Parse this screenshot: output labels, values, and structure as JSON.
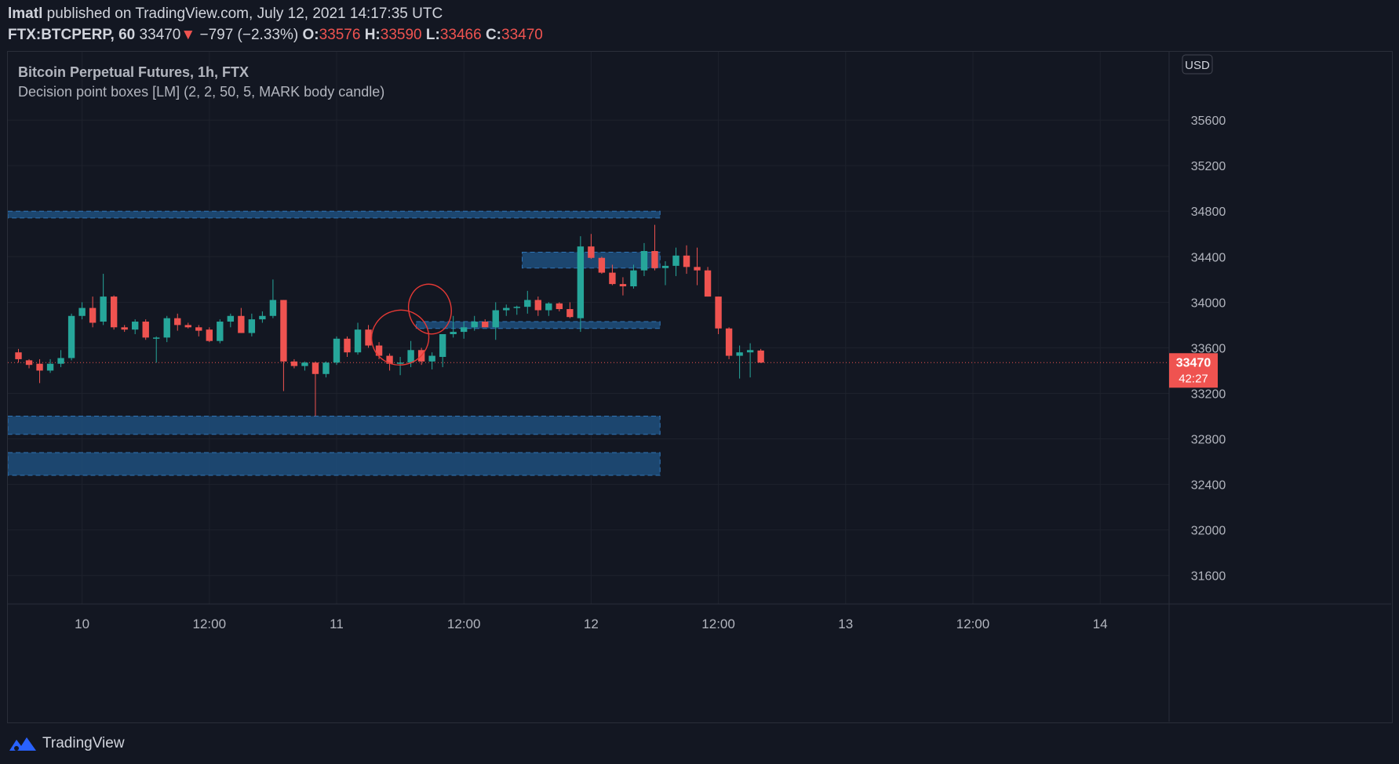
{
  "header": {
    "author": "lmatl",
    "published": "published on TradingView.com, July 12, 2021 14:17:35 UTC",
    "symbol": "FTX:BTCPERP, 60",
    "last": "33470",
    "change_arrow": "▼",
    "change": "−797 (−2.33%)",
    "open_label": "O:",
    "open": "33576",
    "high_label": "H:",
    "high": "33590",
    "low_label": "L:",
    "low": "33466",
    "close_label": "C:",
    "close": "33470"
  },
  "legend": {
    "title": "Bitcoin Perpetual Futures, 1h, FTX",
    "indicator": "Decision point boxes [LM] (2, 2, 50, 5, MARK body candle)"
  },
  "footer": {
    "brand": "TradingView"
  },
  "colors": {
    "background": "#131722",
    "up": "#26a69a",
    "down": "#ef5350",
    "box_fill": "#1e4f7c",
    "box_border": "#2f74b5",
    "grid": "#1e222d",
    "annotation": "#e53935"
  },
  "chart_data": {
    "type": "candlestick",
    "currency_label": "USD",
    "ylim": [
      31350,
      36200
    ],
    "y_ticks": [
      35600,
      35200,
      34800,
      34400,
      34000,
      33600,
      33200,
      32800,
      32400,
      32000,
      31600
    ],
    "x_ticks": [
      {
        "label": "10",
        "h": 6
      },
      {
        "label": "12:00",
        "h": 18
      },
      {
        "label": "11",
        "h": 30
      },
      {
        "label": "12:00",
        "h": 42
      },
      {
        "label": "12",
        "h": 54
      },
      {
        "label": "12:00",
        "h": 66
      },
      {
        "label": "13",
        "h": 78
      },
      {
        "label": "12:00",
        "h": 90
      },
      {
        "label": "14",
        "h": 102
      }
    ],
    "x_range_hours": [
      -1,
      108.5
    ],
    "time_unit": "hours from July 9 2021 18:00 UTC",
    "last_price": {
      "value": 33470,
      "label": "33470",
      "countdown": "42:27"
    },
    "ohlc": [
      [
        33560,
        33590,
        33470,
        33500
      ],
      [
        33490,
        33500,
        33420,
        33450
      ],
      [
        33460,
        33500,
        33290,
        33400
      ],
      [
        33400,
        33500,
        33380,
        33460
      ],
      [
        33460,
        33580,
        33430,
        33510
      ],
      [
        33510,
        33900,
        33490,
        33880
      ],
      [
        33880,
        34000,
        33850,
        33950
      ],
      [
        33950,
        34050,
        33780,
        33820
      ],
      [
        33830,
        34250,
        33800,
        34050
      ],
      [
        34050,
        34060,
        33760,
        33780
      ],
      [
        33780,
        33800,
        33740,
        33760
      ],
      [
        33760,
        33850,
        33720,
        33830
      ],
      [
        33830,
        33850,
        33670,
        33690
      ],
      [
        33690,
        33700,
        33470,
        33690
      ],
      [
        33690,
        33880,
        33650,
        33860
      ],
      [
        33860,
        33900,
        33750,
        33800
      ],
      [
        33800,
        33820,
        33770,
        33780
      ],
      [
        33780,
        33800,
        33700,
        33750
      ],
      [
        33760,
        33780,
        33650,
        33660
      ],
      [
        33660,
        33850,
        33640,
        33830
      ],
      [
        33830,
        33900,
        33780,
        33880
      ],
      [
        33880,
        33950,
        33730,
        33730
      ],
      [
        33730,
        33900,
        33700,
        33850
      ],
      [
        33850,
        33920,
        33820,
        33880
      ],
      [
        33880,
        34200,
        33860,
        34020
      ],
      [
        34020,
        34020,
        33220,
        33480
      ],
      [
        33480,
        33500,
        33420,
        33440
      ],
      [
        33440,
        33480,
        33400,
        33470
      ],
      [
        33470,
        33480,
        33000,
        33370
      ],
      [
        33370,
        33480,
        33340,
        33470
      ],
      [
        33470,
        33700,
        33450,
        33680
      ],
      [
        33680,
        33700,
        33520,
        33560
      ],
      [
        33560,
        33820,
        33540,
        33760
      ],
      [
        33760,
        33800,
        33600,
        33620
      ],
      [
        33620,
        33650,
        33500,
        33530
      ],
      [
        33530,
        33550,
        33400,
        33460
      ],
      [
        33460,
        33520,
        33360,
        33470
      ],
      [
        33470,
        33660,
        33430,
        33580
      ],
      [
        33580,
        33600,
        33450,
        33480
      ],
      [
        33480,
        33560,
        33410,
        33530
      ],
      [
        33520,
        33700,
        33430,
        33720
      ],
      [
        33720,
        33880,
        33690,
        33740
      ],
      [
        33740,
        33830,
        33680,
        33780
      ],
      [
        33780,
        33880,
        33750,
        33830
      ],
      [
        33830,
        33850,
        33780,
        33780
      ],
      [
        33780,
        34000,
        33670,
        33930
      ],
      [
        33930,
        33980,
        33880,
        33950
      ],
      [
        33950,
        33970,
        33890,
        33960
      ],
      [
        33960,
        34100,
        33900,
        34020
      ],
      [
        34020,
        34050,
        33880,
        33930
      ],
      [
        33930,
        34000,
        33880,
        33990
      ],
      [
        33990,
        34000,
        33920,
        33940
      ],
      [
        33940,
        34000,
        33860,
        33870
      ],
      [
        33860,
        34580,
        33740,
        34490
      ],
      [
        34490,
        34600,
        34380,
        34390
      ],
      [
        34390,
        34400,
        34250,
        34260
      ],
      [
        34260,
        34330,
        34150,
        34160
      ],
      [
        34160,
        34220,
        34060,
        34140
      ],
      [
        34140,
        34330,
        34120,
        34280
      ],
      [
        34280,
        34520,
        34230,
        34450
      ],
      [
        34450,
        34680,
        34280,
        34300
      ],
      [
        34300,
        34360,
        34150,
        34320
      ],
      [
        34320,
        34480,
        34230,
        34410
      ],
      [
        34410,
        34500,
        34250,
        34310
      ],
      [
        34310,
        34480,
        34150,
        34280
      ],
      [
        34280,
        34310,
        34050,
        34050
      ],
      [
        34050,
        34050,
        33720,
        33770
      ],
      [
        33770,
        33780,
        33500,
        33530
      ],
      [
        33530,
        33620,
        33330,
        33560
      ],
      [
        33560,
        33640,
        33340,
        33580
      ],
      [
        33576,
        33590,
        33466,
        33470
      ]
    ],
    "boxes": [
      {
        "from": -1,
        "to": 60.5,
        "top": 34800,
        "bottom": 34740
      },
      {
        "from": 47.5,
        "to": 60.5,
        "top": 34440,
        "bottom": 34300
      },
      {
        "from": 37.5,
        "to": 60.5,
        "top": 33830,
        "bottom": 33770
      },
      {
        "from": -1,
        "to": 60.5,
        "top": 33000,
        "bottom": 32840
      },
      {
        "from": -1,
        "to": 60.5,
        "top": 32680,
        "bottom": 32480
      }
    ],
    "annotations": [
      {
        "center_h": 36,
        "center_y": 33690,
        "rx_h": 2.7,
        "ry_y": 240
      },
      {
        "center_h": 38.8,
        "center_y": 33940,
        "rx_h": 2.0,
        "ry_y": 220
      }
    ]
  }
}
